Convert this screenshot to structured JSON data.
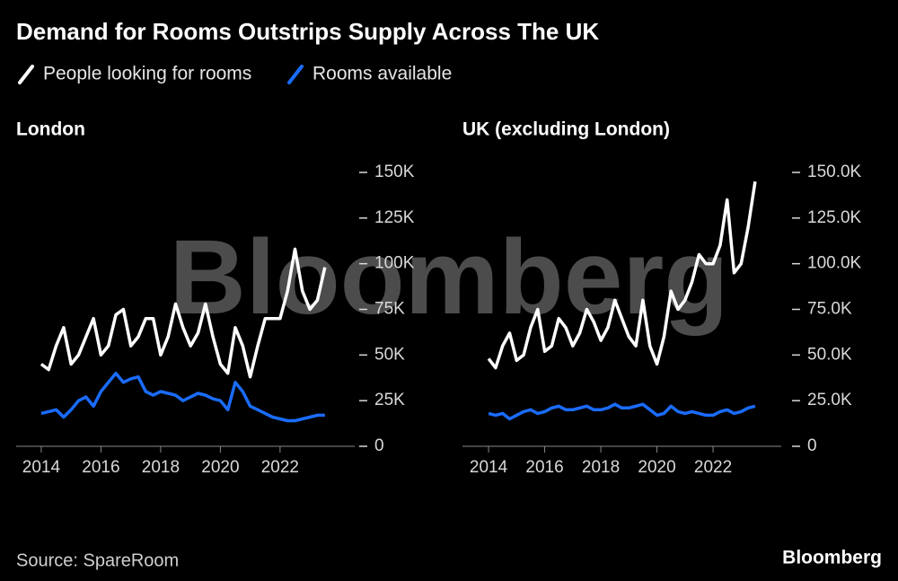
{
  "title": "Demand for Rooms Outstrips Supply Across The UK",
  "source": "Source: SpareRoom",
  "logo": "Bloomberg",
  "watermark": "Bloomberg",
  "chart_data": [
    {
      "type": "line",
      "title": "London",
      "x": [
        2014,
        2014.25,
        2014.5,
        2014.75,
        2015,
        2015.25,
        2015.5,
        2015.75,
        2016,
        2016.25,
        2016.5,
        2016.75,
        2017,
        2017.25,
        2017.5,
        2017.75,
        2018,
        2018.25,
        2018.5,
        2018.75,
        2019,
        2019.25,
        2019.5,
        2019.75,
        2020,
        2020.25,
        2020.5,
        2020.75,
        2021,
        2021.25,
        2021.5,
        2021.75,
        2022,
        2022.25,
        2022.5,
        2022.75,
        2023,
        2023.25,
        2023.5
      ],
      "series": [
        {
          "name": "People looking for rooms",
          "color": "#ffffff",
          "values": [
            45000,
            42000,
            55000,
            65000,
            45000,
            50000,
            60000,
            70000,
            50000,
            55000,
            72000,
            75000,
            55000,
            60000,
            70000,
            70000,
            50000,
            60000,
            78000,
            65000,
            55000,
            62000,
            78000,
            60000,
            45000,
            40000,
            65000,
            55000,
            38000,
            55000,
            70000,
            70000,
            70000,
            85000,
            108000,
            85000,
            75000,
            80000,
            98000
          ]
        },
        {
          "name": "Rooms available",
          "color": "#1a6cff",
          "values": [
            18000,
            19000,
            20000,
            16000,
            20000,
            25000,
            27000,
            22000,
            30000,
            35000,
            40000,
            35000,
            37000,
            38000,
            30000,
            28000,
            30000,
            29000,
            28000,
            25000,
            27000,
            29000,
            28000,
            26000,
            25000,
            20000,
            35000,
            30000,
            22000,
            20000,
            18000,
            16000,
            15000,
            14000,
            14000,
            15000,
            16000,
            17000,
            17000
          ]
        }
      ],
      "xlim": [
        2013.16,
        2024.5
      ],
      "xticks": [
        2014,
        2016,
        2018,
        2020,
        2022
      ],
      "ylim": [
        0,
        150000
      ],
      "yticks": [
        0,
        {
          "value": 25000,
          "label": "25K"
        },
        {
          "value": 50000,
          "label": "50K"
        },
        {
          "value": 75000,
          "label": "75K"
        },
        {
          "value": 100000,
          "label": "100K"
        },
        {
          "value": 125000,
          "label": "125K"
        },
        {
          "value": 150000,
          "label": "150K"
        }
      ]
    },
    {
      "type": "line",
      "title": "UK (excluding London)",
      "x": [
        2014,
        2014.25,
        2014.5,
        2014.75,
        2015,
        2015.25,
        2015.5,
        2015.75,
        2016,
        2016.25,
        2016.5,
        2016.75,
        2017,
        2017.25,
        2017.5,
        2017.75,
        2018,
        2018.25,
        2018.5,
        2018.75,
        2019,
        2019.25,
        2019.5,
        2019.75,
        2020,
        2020.25,
        2020.5,
        2020.75,
        2021,
        2021.25,
        2021.5,
        2021.75,
        2022,
        2022.25,
        2022.5,
        2022.75,
        2023,
        2023.25,
        2023.5
      ],
      "series": [
        {
          "name": "People looking for rooms",
          "color": "#ffffff",
          "values": [
            48000,
            43000,
            55000,
            62000,
            47000,
            50000,
            65000,
            75000,
            52000,
            55000,
            70000,
            65000,
            55000,
            62000,
            75000,
            68000,
            58000,
            65000,
            80000,
            70000,
            60000,
            55000,
            80000,
            55000,
            45000,
            60000,
            85000,
            75000,
            80000,
            90000,
            105000,
            100000,
            100000,
            110000,
            135000,
            95000,
            100000,
            120000,
            145000
          ]
        },
        {
          "name": "Rooms available",
          "color": "#1a6cff",
          "values": [
            18000,
            17000,
            18000,
            15000,
            17000,
            19000,
            20000,
            18000,
            19000,
            21000,
            22000,
            20000,
            20000,
            21000,
            22000,
            20000,
            20000,
            21000,
            23000,
            21000,
            21000,
            22000,
            23000,
            20000,
            17000,
            18000,
            22000,
            19000,
            18000,
            19000,
            18000,
            17000,
            17000,
            19000,
            20000,
            18000,
            19000,
            21000,
            22000
          ]
        }
      ],
      "xlim": [
        2013.07,
        2024.43
      ],
      "xticks": [
        2014,
        2016,
        2018,
        2020,
        2022
      ],
      "ylim": [
        0,
        150000
      ],
      "yticks": [
        0,
        {
          "value": 25000,
          "label": "25.0K"
        },
        {
          "value": 50000,
          "label": "50.0K"
        },
        {
          "value": 75000,
          "label": "75.0K"
        },
        {
          "value": 100000,
          "label": "100.0K"
        },
        {
          "value": 125000,
          "label": "125.0K"
        },
        {
          "value": 150000,
          "label": "150.0K"
        }
      ]
    }
  ]
}
